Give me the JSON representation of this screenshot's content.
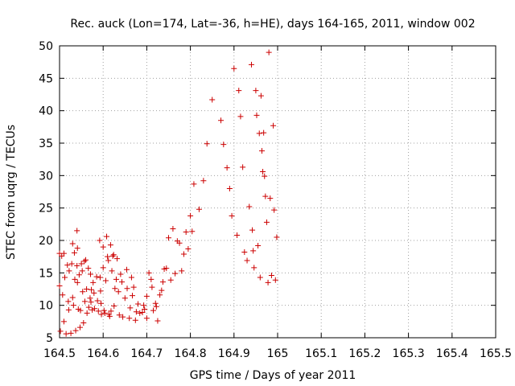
{
  "chart_data": {
    "type": "scatter",
    "title": "Rec. auck (Lon=174, Lat=-36, h=HE), days 164-165, 2011, window 002",
    "xlabel": "GPS time / Days of year 2011",
    "ylabel": "STEC from uqrg / TECUs",
    "xlim": [
      164.5,
      165.5
    ],
    "ylim": [
      5,
      50
    ],
    "xticks": [
      "164.5",
      "164.6",
      "164.7",
      "164.8",
      "164.9",
      "165",
      "165.1",
      "165.2",
      "165.3",
      "165.4",
      "165.5"
    ],
    "yticks": [
      "5",
      "10",
      "15",
      "20",
      "25",
      "30",
      "35",
      "40",
      "45",
      "50"
    ],
    "grid": true,
    "marker": "plus",
    "color": "#cc0000",
    "series": [
      {
        "points": [
          [
            164.5,
            18.0
          ],
          [
            164.5,
            13.0
          ],
          [
            164.502,
            6.0
          ],
          [
            164.505,
            17.6
          ],
          [
            164.507,
            11.6
          ],
          [
            164.51,
            7.5
          ],
          [
            164.51,
            18.0
          ],
          [
            164.512,
            14.3
          ],
          [
            164.515,
            5.6
          ],
          [
            164.518,
            16.2
          ],
          [
            164.52,
            10.6
          ],
          [
            164.521,
            9.3
          ],
          [
            164.522,
            15.3
          ],
          [
            164.526,
            5.7
          ],
          [
            164.528,
            16.4
          ],
          [
            164.53,
            11.2
          ],
          [
            164.53,
            19.5
          ],
          [
            164.532,
            10.0
          ],
          [
            164.534,
            18.1
          ],
          [
            164.535,
            14.0
          ],
          [
            164.537,
            6.1
          ],
          [
            164.54,
            21.5
          ],
          [
            164.54,
            16.1
          ],
          [
            164.541,
            13.5
          ],
          [
            164.541,
            18.8
          ],
          [
            164.543,
            9.4
          ],
          [
            164.545,
            14.7
          ],
          [
            164.547,
            6.6
          ],
          [
            164.548,
            9.2
          ],
          [
            164.55,
            16.4
          ],
          [
            164.552,
            15.3
          ],
          [
            164.553,
            12.1
          ],
          [
            164.555,
            7.3
          ],
          [
            164.557,
            16.8
          ],
          [
            164.558,
            10.6
          ],
          [
            164.56,
            17.0
          ],
          [
            164.562,
            12.5
          ],
          [
            164.563,
            8.8
          ],
          [
            164.566,
            15.7
          ],
          [
            164.567,
            9.7
          ],
          [
            164.57,
            11.1
          ],
          [
            164.571,
            14.8
          ],
          [
            164.572,
            10.5
          ],
          [
            164.573,
            12.4
          ],
          [
            164.575,
            9.3
          ],
          [
            164.577,
            13.5
          ],
          [
            164.579,
            11.9
          ],
          [
            164.58,
            9.5
          ],
          [
            164.585,
            14.4
          ],
          [
            164.587,
            10.7
          ],
          [
            164.589,
            9.1
          ],
          [
            164.592,
            20.0
          ],
          [
            164.593,
            14.3
          ],
          [
            164.594,
            12.2
          ],
          [
            164.595,
            10.3
          ],
          [
            164.596,
            8.6
          ],
          [
            164.6,
            19.0
          ],
          [
            164.6,
            15.8
          ],
          [
            164.602,
            9.2
          ],
          [
            164.604,
            8.8
          ],
          [
            164.606,
            13.8
          ],
          [
            164.608,
            20.6
          ],
          [
            164.61,
            17.5
          ],
          [
            164.612,
            16.9
          ],
          [
            164.613,
            8.6
          ],
          [
            164.615,
            8.3
          ],
          [
            164.617,
            19.3
          ],
          [
            164.618,
            9.1
          ],
          [
            164.62,
            15.3
          ],
          [
            164.622,
            17.6
          ],
          [
            164.624,
            17.8
          ],
          [
            164.625,
            9.9
          ],
          [
            164.627,
            12.6
          ],
          [
            164.63,
            14.0
          ],
          [
            164.632,
            17.2
          ],
          [
            164.635,
            12.1
          ],
          [
            164.637,
            8.5
          ],
          [
            164.64,
            14.8
          ],
          [
            164.643,
            13.6
          ],
          [
            164.645,
            8.2
          ],
          [
            164.65,
            11.1
          ],
          [
            164.654,
            15.5
          ],
          [
            164.655,
            12.6
          ],
          [
            164.66,
            8.0
          ],
          [
            164.662,
            9.6
          ],
          [
            164.665,
            14.3
          ],
          [
            164.667,
            11.5
          ],
          [
            164.67,
            12.8
          ],
          [
            164.674,
            7.7
          ],
          [
            164.676,
            9.0
          ],
          [
            164.68,
            10.2
          ],
          [
            164.684,
            8.8
          ],
          [
            164.69,
            8.9
          ],
          [
            164.693,
            10.0
          ],
          [
            164.695,
            9.4
          ],
          [
            164.7,
            11.4
          ],
          [
            164.7,
            8.0
          ],
          [
            164.705,
            15.0
          ],
          [
            164.71,
            14.0
          ],
          [
            164.712,
            12.8
          ],
          [
            164.715,
            9.2
          ],
          [
            164.72,
            10.3
          ],
          [
            164.722,
            9.8
          ],
          [
            164.725,
            7.6
          ],
          [
            164.73,
            11.6
          ],
          [
            164.734,
            12.3
          ],
          [
            164.737,
            13.6
          ],
          [
            164.74,
            15.6
          ],
          [
            164.745,
            15.7
          ],
          [
            164.75,
            20.4
          ],
          [
            164.755,
            13.9
          ],
          [
            164.76,
            21.8
          ],
          [
            164.765,
            14.9
          ],
          [
            164.77,
            19.9
          ],
          [
            164.775,
            19.6
          ],
          [
            164.78,
            15.3
          ],
          [
            164.785,
            17.9
          ],
          [
            164.79,
            21.3
          ],
          [
            164.795,
            18.7
          ],
          [
            164.8,
            23.8
          ],
          [
            164.804,
            21.4
          ],
          [
            164.808,
            28.7
          ],
          [
            164.82,
            24.8
          ],
          [
            164.83,
            29.2
          ],
          [
            164.838,
            34.9
          ],
          [
            164.85,
            41.7
          ],
          [
            164.87,
            38.5
          ],
          [
            164.876,
            34.8
          ],
          [
            164.884,
            31.2
          ],
          [
            164.89,
            28.0
          ],
          [
            164.895,
            23.8
          ],
          [
            164.9,
            46.5
          ],
          [
            164.907,
            20.8
          ],
          [
            164.911,
            43.1
          ],
          [
            164.915,
            39.1
          ],
          [
            164.92,
            31.3
          ],
          [
            164.924,
            18.2
          ],
          [
            164.93,
            16.9
          ],
          [
            164.935,
            25.2
          ],
          [
            164.94,
            47.1
          ],
          [
            164.942,
            21.6
          ],
          [
            164.944,
            18.4
          ],
          [
            164.946,
            15.8
          ],
          [
            164.95,
            43.1
          ],
          [
            164.952,
            39.3
          ],
          [
            164.955,
            19.2
          ],
          [
            164.958,
            36.5
          ],
          [
            164.96,
            14.3
          ],
          [
            164.962,
            42.3
          ],
          [
            164.964,
            33.8
          ],
          [
            164.966,
            30.6
          ],
          [
            164.968,
            36.6
          ],
          [
            164.97,
            29.9
          ],
          [
            164.972,
            26.8
          ],
          [
            164.975,
            22.8
          ],
          [
            164.978,
            13.5
          ],
          [
            164.98,
            49.0
          ],
          [
            164.983,
            26.5
          ],
          [
            164.986,
            14.6
          ],
          [
            164.99,
            37.7
          ],
          [
            164.992,
            24.7
          ],
          [
            164.995,
            13.9
          ],
          [
            164.998,
            20.5
          ]
        ]
      }
    ]
  }
}
